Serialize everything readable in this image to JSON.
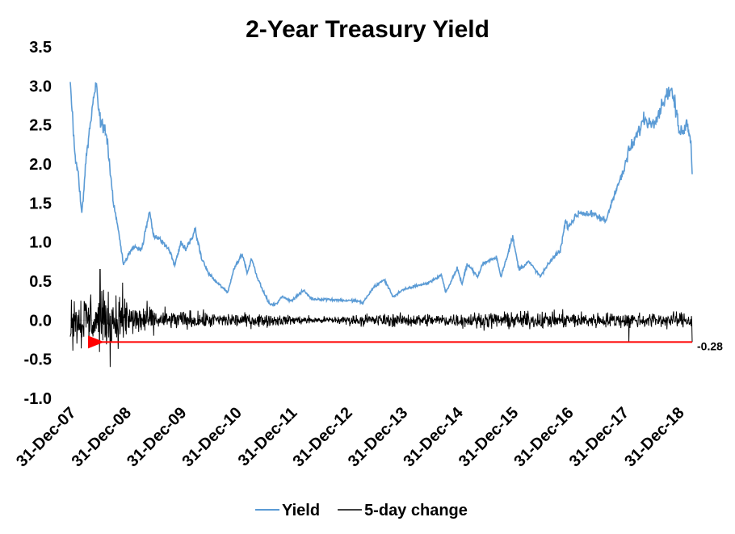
{
  "chart_data": {
    "type": "line",
    "title": "2-Year Treasury Yield",
    "xlabel": "",
    "ylabel": "",
    "ylim": [
      -1.0,
      3.5
    ],
    "yticks": [
      "3.5",
      "3.0",
      "2.5",
      "2.0",
      "1.5",
      "1.0",
      "0.5",
      "0.0",
      "-0.5",
      "-1.0"
    ],
    "xticks": [
      "31-Dec-07",
      "31-Dec-08",
      "31-Dec-09",
      "31-Dec-10",
      "31-Dec-11",
      "31-Dec-12",
      "31-Dec-13",
      "31-Dec-14",
      "31-Dec-15",
      "31-Dec-16",
      "31-Dec-17",
      "31-Dec-18"
    ],
    "xrange": [
      "2007-12-31",
      "2019-03-31"
    ],
    "grid": false,
    "legend_position": "bottom",
    "series": [
      {
        "name": "Yield",
        "color": "#5b9bd5",
        "points": [
          [
            "2007-12-31",
            3.05
          ],
          [
            "2008-01-15",
            2.6
          ],
          [
            "2008-02-01",
            2.1
          ],
          [
            "2008-02-20",
            1.9
          ],
          [
            "2008-03-10",
            1.5
          ],
          [
            "2008-03-17",
            1.35
          ],
          [
            "2008-04-10",
            2.0
          ],
          [
            "2008-05-10",
            2.5
          ],
          [
            "2008-06-10",
            2.95
          ],
          [
            "2008-06-20",
            3.0
          ],
          [
            "2008-07-10",
            2.6
          ],
          [
            "2008-08-10",
            2.45
          ],
          [
            "2008-09-01",
            2.3
          ],
          [
            "2008-09-20",
            1.9
          ],
          [
            "2008-10-10",
            1.5
          ],
          [
            "2008-11-10",
            1.2
          ],
          [
            "2008-12-17",
            0.7
          ],
          [
            "2009-01-20",
            0.85
          ],
          [
            "2009-03-01",
            0.95
          ],
          [
            "2009-04-15",
            0.9
          ],
          [
            "2009-06-08",
            1.4
          ],
          [
            "2009-07-01",
            1.1
          ],
          [
            "2009-09-01",
            1.0
          ],
          [
            "2009-10-15",
            0.9
          ],
          [
            "2009-11-20",
            0.7
          ],
          [
            "2009-12-31",
            1.0
          ],
          [
            "2010-02-01",
            0.9
          ],
          [
            "2010-04-05",
            1.15
          ],
          [
            "2010-05-15",
            0.8
          ],
          [
            "2010-07-01",
            0.6
          ],
          [
            "2010-08-15",
            0.5
          ],
          [
            "2010-10-01",
            0.42
          ],
          [
            "2010-11-04",
            0.35
          ],
          [
            "2010-12-15",
            0.65
          ],
          [
            "2011-02-08",
            0.85
          ],
          [
            "2011-03-15",
            0.6
          ],
          [
            "2011-04-10",
            0.8
          ],
          [
            "2011-05-20",
            0.55
          ],
          [
            "2011-06-20",
            0.4
          ],
          [
            "2011-08-10",
            0.2
          ],
          [
            "2011-09-20",
            0.2
          ],
          [
            "2011-10-25",
            0.3
          ],
          [
            "2011-12-31",
            0.25
          ],
          [
            "2012-03-20",
            0.38
          ],
          [
            "2012-05-15",
            0.27
          ],
          [
            "2012-08-15",
            0.27
          ],
          [
            "2012-12-31",
            0.25
          ],
          [
            "2013-03-01",
            0.25
          ],
          [
            "2013-04-15",
            0.22
          ],
          [
            "2013-06-25",
            0.42
          ],
          [
            "2013-09-05",
            0.52
          ],
          [
            "2013-11-01",
            0.3
          ],
          [
            "2013-12-31",
            0.38
          ],
          [
            "2014-03-31",
            0.44
          ],
          [
            "2014-06-15",
            0.47
          ],
          [
            "2014-09-18",
            0.58
          ],
          [
            "2014-10-15",
            0.35
          ],
          [
            "2014-12-31",
            0.67
          ],
          [
            "2015-01-30",
            0.45
          ],
          [
            "2015-03-06",
            0.73
          ],
          [
            "2015-05-15",
            0.55
          ],
          [
            "2015-06-15",
            0.72
          ],
          [
            "2015-09-15",
            0.81
          ],
          [
            "2015-10-15",
            0.56
          ],
          [
            "2015-12-31",
            1.06
          ],
          [
            "2016-02-11",
            0.65
          ],
          [
            "2016-04-15",
            0.75
          ],
          [
            "2016-07-01",
            0.56
          ],
          [
            "2016-09-15",
            0.78
          ],
          [
            "2016-11-10",
            0.9
          ],
          [
            "2016-12-15",
            1.27
          ],
          [
            "2016-12-31",
            1.2
          ],
          [
            "2017-03-15",
            1.38
          ],
          [
            "2017-06-15",
            1.35
          ],
          [
            "2017-09-07",
            1.27
          ],
          [
            "2017-11-01",
            1.62
          ],
          [
            "2017-12-31",
            1.89
          ],
          [
            "2018-01-31",
            2.14
          ],
          [
            "2018-03-15",
            2.3
          ],
          [
            "2018-05-17",
            2.58
          ],
          [
            "2018-06-29",
            2.52
          ],
          [
            "2018-08-15",
            2.62
          ],
          [
            "2018-09-25",
            2.82
          ],
          [
            "2018-11-08",
            2.97
          ],
          [
            "2018-12-03",
            2.8
          ],
          [
            "2018-12-31",
            2.49
          ],
          [
            "2019-01-03",
            2.38
          ],
          [
            "2019-01-31",
            2.45
          ],
          [
            "2019-02-25",
            2.52
          ],
          [
            "2019-03-08",
            2.45
          ],
          [
            "2019-03-22",
            2.3
          ],
          [
            "2019-03-31",
            1.87
          ]
        ]
      },
      {
        "name": "5-day change",
        "color": "#000000",
        "amplitude": [
          [
            "2007-12-31",
            0.4
          ],
          [
            "2008-06-01",
            0.45
          ],
          [
            "2008-12-31",
            0.35
          ],
          [
            "2009-06-30",
            0.18
          ],
          [
            "2010-06-30",
            0.12
          ],
          [
            "2011-06-30",
            0.1
          ],
          [
            "2012-06-30",
            0.05
          ],
          [
            "2013-06-30",
            0.1
          ],
          [
            "2014-06-30",
            0.1
          ],
          [
            "2015-06-30",
            0.12
          ],
          [
            "2016-06-30",
            0.13
          ],
          [
            "2017-06-30",
            0.12
          ],
          [
            "2018-06-30",
            0.12
          ],
          [
            "2019-03-31",
            0.12
          ]
        ],
        "extremes": [
          [
            "2008-07-15",
            0.65
          ],
          [
            "2008-09-20",
            -0.6
          ],
          [
            "2008-12-10",
            0.48
          ],
          [
            "2018-02-05",
            -0.28
          ]
        ],
        "last_value": -0.28
      }
    ],
    "annotations": [
      {
        "text": "-0.28",
        "date": "2019-03-31",
        "value": -0.28,
        "color": "#ff0000"
      }
    ]
  }
}
